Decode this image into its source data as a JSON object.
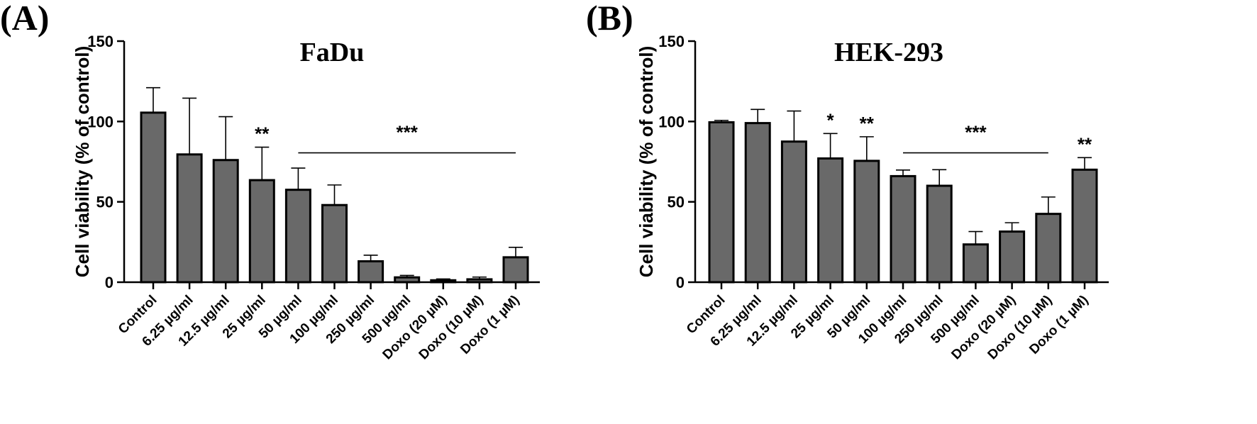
{
  "panels": [
    {
      "letter": "(A)",
      "chart_data": {
        "type": "bar",
        "title": "FaDu",
        "ylabel": "Cell viability (% of control)",
        "xlabel": "",
        "ylim": [
          0,
          150
        ],
        "yticks": [
          "0",
          "50",
          "100",
          "150"
        ],
        "categories": [
          "Control",
          "6.25 µg/ml",
          "12.5 µg/ml",
          "25 µg/ml",
          "50 µg/ml",
          "100 µg/ml",
          "250 µg/ml",
          "500 µg/ml",
          "Doxo (20 µM)",
          "Doxo (10 µM)",
          "Doxo (1 µM)"
        ],
        "values": [
          105.5,
          79.5,
          76,
          63.5,
          57.5,
          48,
          13,
          3,
          1.2,
          1.8,
          15.5
        ],
        "errors": [
          15.5,
          35,
          27,
          20.5,
          13.5,
          12.5,
          3.8,
          1.2,
          0.8,
          1.4,
          6.2
        ],
        "bar_color": "#696969",
        "annotations": [
          {
            "text": "**",
            "category_index": 3
          },
          {
            "text": "***",
            "span": [
              4,
              10
            ],
            "line_value": 80.5
          }
        ]
      }
    },
    {
      "letter": "(B)",
      "chart_data": {
        "type": "bar",
        "title": "HEK-293",
        "ylabel": "Cell viability (% of control)",
        "xlabel": "",
        "ylim": [
          0,
          150
        ],
        "yticks": [
          "0",
          "50",
          "100",
          "150"
        ],
        "categories": [
          "Control",
          "6.25 µg/ml",
          "12.5 µg/ml",
          "25 µg/ml",
          "50 µg/ml",
          "100 µg/ml",
          "250 µg/ml",
          "500 µg/ml",
          "Doxo (20 µM)",
          "Doxo (10 µM)",
          "Doxo (1 µM)"
        ],
        "values": [
          99.5,
          99,
          87.5,
          77,
          75.5,
          66,
          60,
          23.5,
          31.5,
          42.5,
          70
        ],
        "errors": [
          1.2,
          8.5,
          19,
          15.5,
          15,
          3.8,
          10,
          8,
          5.5,
          10.5,
          7.5
        ],
        "bar_color": "#696969",
        "annotations": [
          {
            "text": "*",
            "category_index": 3
          },
          {
            "text": "**",
            "category_index": 4
          },
          {
            "text": "***",
            "span": [
              5,
              9
            ],
            "line_value": 80.5
          },
          {
            "text": "**",
            "category_index": 10
          }
        ]
      }
    }
  ]
}
